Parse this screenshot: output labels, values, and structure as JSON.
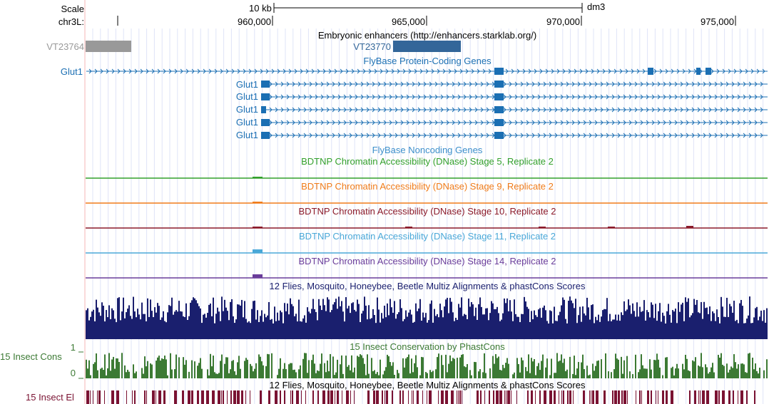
{
  "ruler": {
    "scale_label": "Scale",
    "chrom_label": "chr3L:",
    "scale_bar": "10 kb",
    "assembly": "dm3",
    "positions": [
      "960,000",
      "965,000",
      "970,000",
      "975,000"
    ]
  },
  "tracks": {
    "enhancers": {
      "title": "Embryonic enhancers (http://enhancers.starklab.org/)",
      "items": [
        "VT23764",
        "VT23770"
      ],
      "colors": [
        "#999999",
        "#336699"
      ]
    },
    "flybase_coding": {
      "title": "FlyBase Protein-Coding Genes",
      "color": "#1b6fb3",
      "genes": [
        "Glut1",
        "Glut1",
        "Glut1",
        "Glut1",
        "Glut1",
        "Glut1"
      ]
    },
    "flybase_noncoding": {
      "title": "FlyBase Noncoding Genes",
      "color": "#3d8fcb"
    },
    "dnase": [
      {
        "title": "BDTNP Chromatin Accessibility (DNase) Stage 5, Replicate 2",
        "color": "#33a02c"
      },
      {
        "title": "BDTNP Chromatin Accessibility (DNase) Stage 9, Replicate 2",
        "color": "#f07c1a"
      },
      {
        "title": "BDTNP Chromatin Accessibility (DNase) Stage 10, Replicate 2",
        "color": "#8b1a2a"
      },
      {
        "title": "BDTNP Chromatin Accessibility (DNase) Stage 11, Replicate 2",
        "color": "#4aa8d8"
      },
      {
        "title": "BDTNP Chromatin Accessibility (DNase) Stage 14, Replicate 2",
        "color": "#6a3d9a"
      }
    ],
    "multiz": {
      "title": "12 Flies, Mosquito, Honeybee, Beetle Multiz Alignments & phastCons Scores",
      "color": "#1a1f6e"
    },
    "phastcons": {
      "title": "15 Insect Conservation by PhastCons",
      "side_label": "15 Insect Cons",
      "ymax_label": "1",
      "ymin_label": "0",
      "color": "#3c7a34"
    },
    "elements": {
      "title": "12 Flies, Mosquito, Honeybee, Beetle Multiz Alignments & phastCons Scores",
      "side_label": "15 Insect El",
      "color": "#7a1232"
    }
  }
}
